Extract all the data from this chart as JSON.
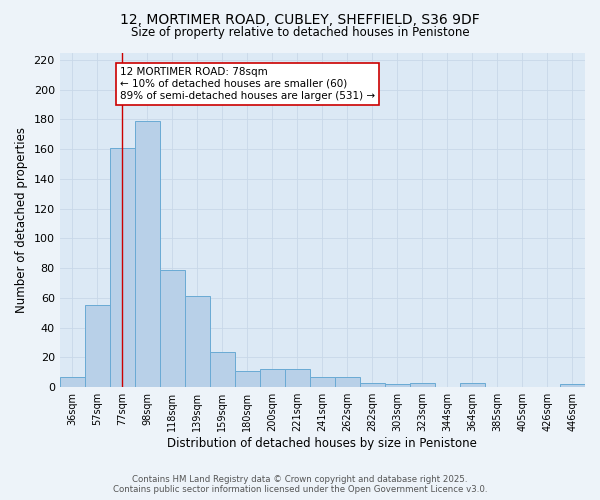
{
  "title1": "12, MORTIMER ROAD, CUBLEY, SHEFFIELD, S36 9DF",
  "title2": "Size of property relative to detached houses in Penistone",
  "xlabel": "Distribution of detached houses by size in Penistone",
  "ylabel": "Number of detached properties",
  "categories": [
    "36sqm",
    "57sqm",
    "77sqm",
    "98sqm",
    "118sqm",
    "139sqm",
    "159sqm",
    "180sqm",
    "200sqm",
    "221sqm",
    "241sqm",
    "262sqm",
    "282sqm",
    "303sqm",
    "323sqm",
    "344sqm",
    "364sqm",
    "385sqm",
    "405sqm",
    "426sqm",
    "446sqm"
  ],
  "values": [
    7,
    55,
    161,
    179,
    79,
    61,
    24,
    11,
    12,
    12,
    7,
    7,
    3,
    2,
    3,
    0,
    3,
    0,
    0,
    0,
    2
  ],
  "bar_color": "#b8d0e8",
  "bar_edge_color": "#6aaad4",
  "grid_color": "#c8d8e8",
  "background_color": "#dce9f5",
  "fig_background_color": "#edf3f9",
  "vline_x_index": 2,
  "vline_color": "#cc0000",
  "annotation_text": "12 MORTIMER ROAD: 78sqm\n← 10% of detached houses are smaller (60)\n89% of semi-detached houses are larger (531) →",
  "annotation_box_color": "#ffffff",
  "annotation_box_edge": "#cc0000",
  "ylim": [
    0,
    225
  ],
  "yticks": [
    0,
    20,
    40,
    60,
    80,
    100,
    120,
    140,
    160,
    180,
    200,
    220
  ],
  "footer1": "Contains HM Land Registry data © Crown copyright and database right 2025.",
  "footer2": "Contains public sector information licensed under the Open Government Licence v3.0."
}
